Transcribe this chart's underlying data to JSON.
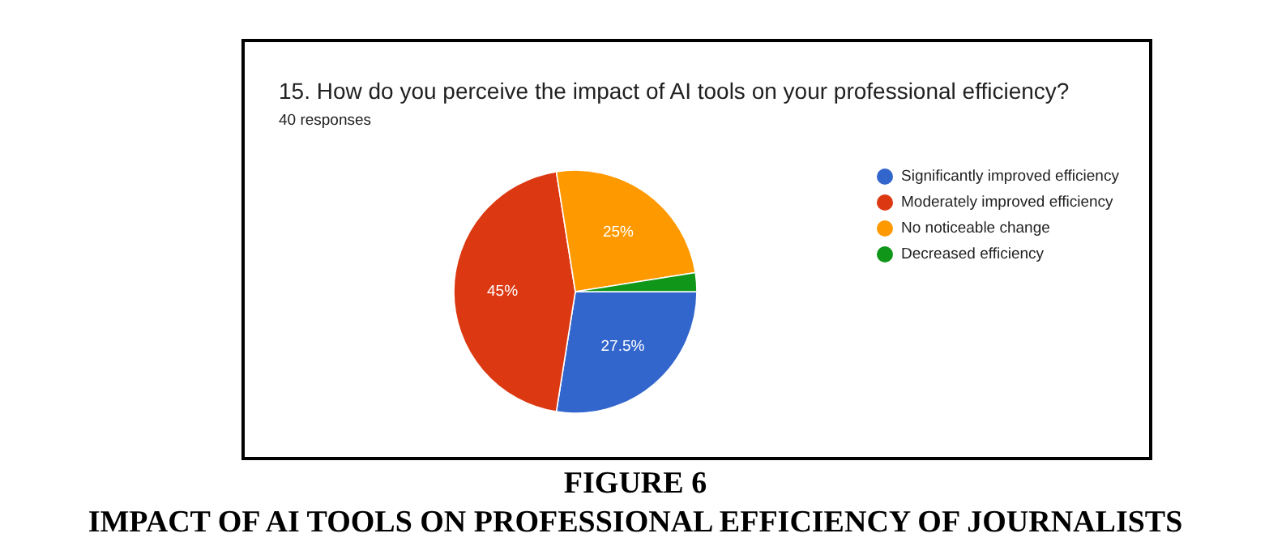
{
  "chart_data": {
    "type": "pie",
    "title": "15. How do you perceive the impact of AI tools on your professional efficiency?",
    "subtitle": "40 responses",
    "categories": [
      "Significantly improved efficiency",
      "Moderately improved efficiency",
      "No noticeable change",
      "Decreased efficiency"
    ],
    "values": [
      27.5,
      45,
      25,
      2.5
    ],
    "colors": [
      "#3366cc",
      "#dc3912",
      "#ff9900",
      "#109618"
    ],
    "value_labels": [
      "27.5%",
      "45%",
      "25%",
      null
    ],
    "legend": "right",
    "annotations": [
      "FIGURE 6",
      "IMPACT OF AI TOOLS ON PROFESSIONAL EFFICIENCY OF JOURNALISTS"
    ]
  }
}
